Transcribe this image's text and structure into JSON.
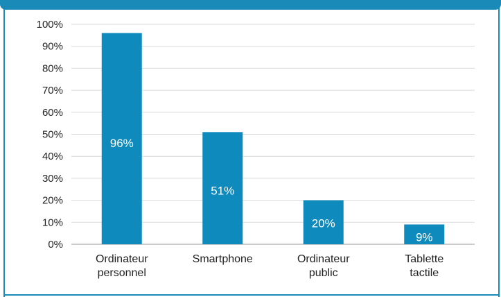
{
  "chart_data": {
    "type": "bar",
    "categories": [
      [
        "Ordinateur",
        "personnel"
      ],
      [
        "Smartphone"
      ],
      [
        "Ordinateur",
        "public"
      ],
      [
        "Tablette",
        "tactile"
      ]
    ],
    "values": [
      96,
      51,
      20,
      9
    ],
    "data_labels": [
      "96%",
      "51%",
      "20%",
      "9%"
    ],
    "y_ticks": [
      "0%",
      "10%",
      "20%",
      "30%",
      "40%",
      "50%",
      "60%",
      "70%",
      "80%",
      "90%",
      "100%"
    ],
    "ylim": [
      0,
      100
    ],
    "grid": true,
    "bar_color": "#0f8abd",
    "grid_color": "#d9d9d9"
  }
}
